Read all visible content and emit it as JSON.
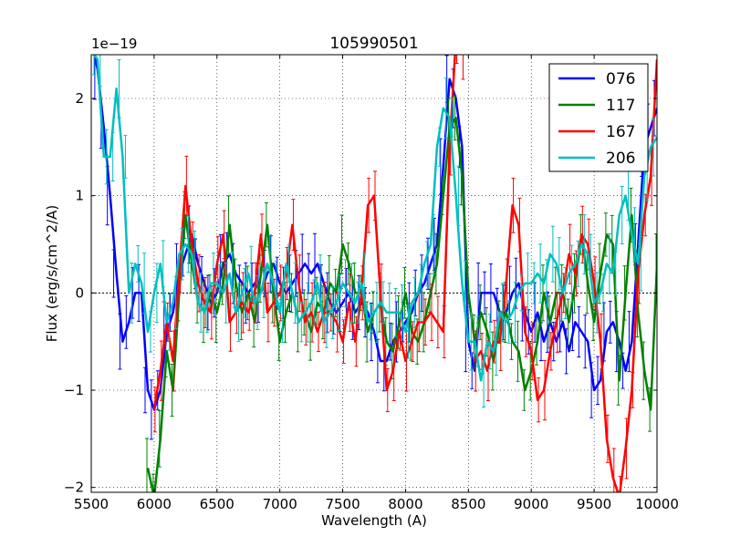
{
  "chart_data": {
    "type": "line",
    "title": "105990501",
    "xlabel": "Wavelength (A)",
    "ylabel": "Flux (erg/s/cm^2/A)",
    "y_offset_label": "1e−19",
    "xlim": [
      5500,
      10000
    ],
    "ylim": [
      -2.05,
      2.45
    ],
    "grid": true,
    "legend_position": "top-right",
    "x_ticks": [
      5500,
      6000,
      6500,
      7000,
      7500,
      8000,
      8500,
      9000,
      9500,
      10000
    ],
    "x_tick_labels": [
      "5500",
      "6000",
      "6500",
      "7000",
      "7500",
      "8000",
      "8500",
      "9000",
      "9500",
      "10000"
    ],
    "y_ticks": [
      -2,
      -1,
      0,
      1,
      2
    ],
    "y_tick_labels": [
      "−2",
      "−1",
      "0",
      "1",
      "2"
    ],
    "series": [
      {
        "name": "076",
        "color": "#0000ff",
        "x": [
          5500,
          5550,
          5600,
          5650,
          5700,
          5750,
          5800,
          5850,
          5900,
          5950,
          6000,
          6050,
          6100,
          6150,
          6200,
          6250,
          6300,
          6350,
          6400,
          6450,
          6500,
          6550,
          6600,
          6650,
          6700,
          6750,
          6800,
          6850,
          6900,
          6950,
          7000,
          7050,
          7100,
          7150,
          7200,
          7250,
          7300,
          7350,
          7400,
          7450,
          7500,
          7550,
          7600,
          7650,
          7700,
          7750,
          7800,
          7850,
          7900,
          7950,
          8000,
          8050,
          8100,
          8150,
          8200,
          8250,
          8300,
          8350,
          8400,
          8450,
          8500,
          8550,
          8600,
          8650,
          8700,
          8750,
          8800,
          8850,
          8900,
          8950,
          9000,
          9050,
          9100,
          9150,
          9200,
          9250,
          9300,
          9350,
          9400,
          9450,
          9500,
          9550,
          9600,
          9650,
          9700,
          9750,
          9800,
          9850,
          9900,
          9950,
          10000
        ],
        "y": [
          2.6,
          2.3,
          1.7,
          1.0,
          0.2,
          -0.5,
          -0.3,
          0.0,
          0.0,
          -1.0,
          -1.2,
          -1.0,
          -0.4,
          -0.2,
          0.2,
          0.4,
          0.6,
          0.3,
          0.1,
          -0.1,
          0.0,
          0.3,
          0.4,
          0.2,
          0.1,
          0.0,
          0.1,
          0.0,
          0.2,
          0.3,
          0.1,
          0.0,
          0.1,
          0.2,
          0.3,
          0.2,
          0.3,
          0.1,
          -0.1,
          -0.2,
          -0.1,
          0.0,
          -0.2,
          -0.1,
          -0.2,
          -0.4,
          -0.7,
          -0.7,
          -0.5,
          -0.4,
          -0.3,
          -0.2,
          0.0,
          0.1,
          0.3,
          0.5,
          1.3,
          2.2,
          2.0,
          1.5,
          -0.5,
          -0.8,
          0.0,
          0.0,
          0.0,
          -0.2,
          -0.2,
          0.0,
          0.1,
          -0.2,
          -0.4,
          -0.2,
          -0.5,
          -0.3,
          -0.5,
          -0.3,
          -0.6,
          -0.3,
          -0.4,
          -0.5,
          -1.0,
          -0.9,
          -0.4,
          -0.3,
          -0.5,
          -0.8,
          -0.5,
          0.5,
          1.5,
          1.7,
          1.9
        ]
      },
      {
        "name": "117",
        "color": "#008000",
        "x": [
          5500,
          5550,
          5600,
          5650,
          5700,
          5750,
          5800,
          5850,
          5900,
          5950,
          6000,
          6050,
          6100,
          6150,
          6200,
          6250,
          6300,
          6350,
          6400,
          6450,
          6500,
          6550,
          6600,
          6650,
          6700,
          6750,
          6800,
          6850,
          6900,
          6950,
          7000,
          7050,
          7100,
          7150,
          7200,
          7250,
          7300,
          7350,
          7400,
          7450,
          7500,
          7550,
          7600,
          7650,
          7700,
          7750,
          7800,
          7850,
          7900,
          7950,
          8000,
          8050,
          8100,
          8150,
          8200,
          8250,
          8300,
          8350,
          8400,
          8450,
          8500,
          8550,
          8600,
          8650,
          8700,
          8750,
          8800,
          8850,
          8900,
          8950,
          9000,
          9050,
          9100,
          9150,
          9200,
          9250,
          9300,
          9350,
          9400,
          9450,
          9500,
          9550,
          9600,
          9650,
          9700,
          9750,
          9800,
          9850,
          9900,
          9950,
          10000
        ],
        "y": [
          null,
          null,
          null,
          null,
          null,
          null,
          null,
          null,
          null,
          -1.8,
          -2.1,
          -1.5,
          -0.6,
          -1.0,
          0.0,
          0.8,
          0.3,
          -0.1,
          -0.2,
          0.0,
          -0.2,
          0.1,
          0.7,
          0.1,
          -0.2,
          0.0,
          -0.3,
          0.2,
          0.7,
          0.0,
          -0.5,
          -0.2,
          0.0,
          -0.3,
          -0.2,
          -0.4,
          -0.1,
          -0.2,
          0.1,
          0.0,
          0.5,
          0.3,
          0.0,
          0.0,
          -0.4,
          -0.2,
          -0.1,
          -0.5,
          -0.6,
          -0.3,
          0.0,
          -0.4,
          -0.5,
          -0.3,
          0.0,
          0.3,
          1.0,
          1.7,
          1.8,
          1.2,
          0.0,
          -0.5,
          -0.2,
          -0.4,
          -0.7,
          -0.3,
          -0.2,
          -0.5,
          -0.6,
          -1.0,
          -0.8,
          -0.5,
          0.0,
          -0.3,
          0.0,
          0.0,
          -0.3,
          0.1,
          0.6,
          0.1,
          -0.3,
          0.2,
          0.6,
          0.5,
          -0.9,
          0.0,
          0.8,
          -0.2,
          -0.8,
          -1.2,
          0.3
        ]
      },
      {
        "name": "167",
        "color": "#ff0000",
        "x": [
          5500,
          5550,
          5600,
          5650,
          5700,
          5750,
          5800,
          5850,
          5900,
          5950,
          6000,
          6050,
          6100,
          6150,
          6200,
          6250,
          6300,
          6350,
          6400,
          6450,
          6500,
          6550,
          6600,
          6650,
          6700,
          6750,
          6800,
          6850,
          6900,
          6950,
          7000,
          7050,
          7100,
          7150,
          7200,
          7250,
          7300,
          7350,
          7400,
          7450,
          7500,
          7550,
          7600,
          7650,
          7700,
          7750,
          7800,
          7850,
          7900,
          7950,
          8000,
          8050,
          8100,
          8150,
          8200,
          8250,
          8300,
          8350,
          8400,
          8450,
          8500,
          8550,
          8600,
          8650,
          8700,
          8750,
          8800,
          8850,
          8900,
          8950,
          9000,
          9050,
          9100,
          9150,
          9200,
          9250,
          9300,
          9350,
          9400,
          9450,
          9500,
          9550,
          9600,
          9650,
          9700,
          9750,
          9800,
          9850,
          9900,
          9950,
          10000
        ],
        "y": [
          null,
          null,
          null,
          null,
          null,
          null,
          null,
          null,
          null,
          null,
          -1.2,
          -0.8,
          -0.3,
          -0.7,
          0.2,
          1.1,
          0.5,
          0.1,
          -0.1,
          -0.2,
          0.3,
          0.6,
          -0.3,
          -0.2,
          -0.1,
          -0.2,
          0.0,
          0.6,
          -0.2,
          -0.1,
          0.0,
          0.2,
          0.7,
          0.1,
          -0.3,
          -0.2,
          -0.4,
          -0.2,
          -0.2,
          -0.3,
          -0.5,
          -0.1,
          -0.5,
          0.0,
          0.9,
          1.0,
          0.0,
          -1.0,
          -0.8,
          -0.4,
          -0.7,
          -0.5,
          -0.3,
          -0.3,
          -0.2,
          -0.3,
          -0.4,
          1.5,
          2.6,
          2.5,
          null,
          -0.7,
          -0.6,
          -0.8,
          -0.5,
          -0.5,
          0.1,
          0.9,
          0.7,
          -0.4,
          -0.6,
          -1.1,
          -1.0,
          -0.6,
          -0.3,
          0.0,
          0.4,
          0.2,
          0.6,
          0.5,
          0.1,
          -0.5,
          -1.5,
          -1.9,
          -2.1,
          -1.6,
          -1.0,
          0.2,
          0.8,
          1.2,
          2.4
        ]
      },
      {
        "name": "206",
        "color": "#00bfbf",
        "x": [
          5500,
          5550,
          5600,
          5650,
          5700,
          5750,
          5800,
          5850,
          5900,
          5950,
          6000,
          6050,
          6100,
          6150,
          6200,
          6250,
          6300,
          6350,
          6400,
          6450,
          6500,
          6550,
          6600,
          6650,
          6700,
          6750,
          6800,
          6850,
          6900,
          6950,
          7000,
          7050,
          7100,
          7150,
          7200,
          7250,
          7300,
          7350,
          7400,
          7450,
          7500,
          7550,
          7600,
          7650,
          7700,
          7750,
          7800,
          7850,
          7900,
          7950,
          8000,
          8050,
          8100,
          8150,
          8200,
          8250,
          8300,
          8350,
          8400,
          8450,
          8500,
          8550,
          8600,
          8650,
          8700,
          8750,
          8800,
          8850,
          8900,
          8950,
          9000,
          9050,
          9100,
          9150,
          9200,
          9250,
          9300,
          9350,
          9400,
          9450,
          9500,
          9550,
          9600,
          9650,
          9700,
          9750,
          9800,
          9850,
          9900,
          9950,
          10000
        ],
        "y": [
          2.5,
          2.4,
          1.4,
          1.4,
          2.1,
          1.4,
          0.0,
          0.3,
          0.1,
          -0.4,
          0.0,
          0.3,
          -0.3,
          -0.1,
          0.4,
          0.5,
          0.4,
          -0.1,
          -0.2,
          0.1,
          0.1,
          0.0,
          0.2,
          -0.2,
          0.0,
          0.2,
          -0.1,
          0.0,
          0.3,
          0.1,
          -0.2,
          0.3,
          0.0,
          -0.3,
          -0.2,
          -0.1,
          0.1,
          -0.3,
          -0.2,
          -0.1,
          0.1,
          0.0,
          -0.1,
          0.1,
          -0.3,
          -0.2,
          -0.1,
          -0.2,
          -0.2,
          -0.2,
          -0.4,
          -0.1,
          0.0,
          0.3,
          0.5,
          1.5,
          1.9,
          1.8,
          1.0,
          0.1,
          -0.5,
          -0.5,
          -0.9,
          -0.5,
          -0.6,
          -0.2,
          -0.3,
          -0.2,
          0.0,
          0.1,
          0.1,
          0.2,
          0.1,
          0.4,
          0.3,
          0.0,
          0.2,
          0.3,
          0.5,
          0.4,
          -0.1,
          0.0,
          0.3,
          0.2,
          0.8,
          1.0,
          0.6,
          0.3,
          1.2,
          1.5,
          1.6
        ]
      }
    ]
  }
}
